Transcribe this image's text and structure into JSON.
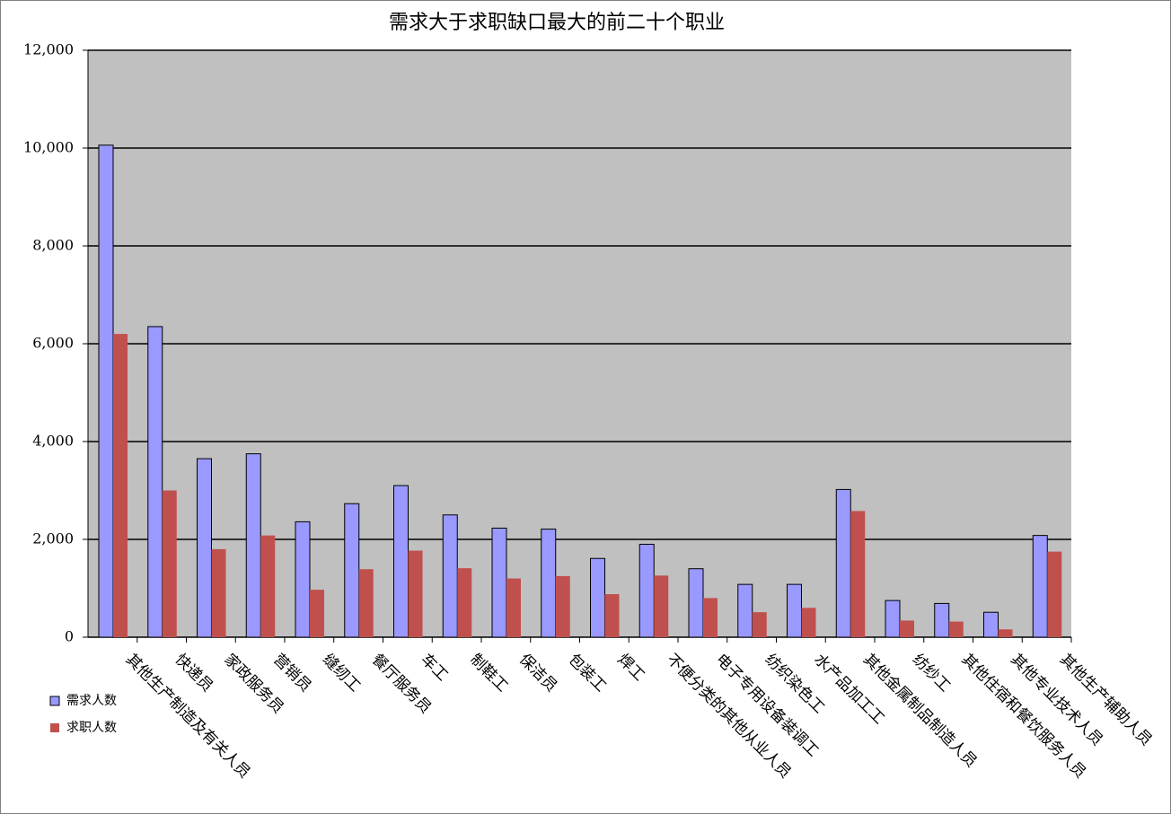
{
  "chart_data": {
    "type": "bar",
    "title": "需求大于求职缺口最大的前二十个职业",
    "categories": [
      "其他生产制造及有关人员",
      "快递员",
      "家政服务员",
      "营销员",
      "缝纫工",
      "餐厅服务员",
      "车工",
      "制鞋工",
      "保洁员",
      "包装工",
      "焊工",
      "不便分类的其他从业人员",
      "电子专用设备装调工",
      "纺织染色工",
      "水产品加工工",
      "其他金属制品制造人员",
      "纺纱工",
      "其他住宿和餐饮服务人员",
      "其他专业技术人员",
      "其他生产辅助人员"
    ],
    "series": [
      {
        "name": "需求人数",
        "color": "#9999ff",
        "values": [
          10060,
          6350,
          3650,
          3750,
          2360,
          2730,
          3100,
          2500,
          2230,
          2210,
          1610,
          1900,
          1400,
          1080,
          1080,
          3020,
          750,
          690,
          510,
          2080
        ]
      },
      {
        "name": "求职人数",
        "color": "#c0504d",
        "values": [
          6200,
          3000,
          1800,
          2080,
          970,
          1390,
          1770,
          1410,
          1200,
          1250,
          880,
          1260,
          800,
          510,
          600,
          2580,
          340,
          320,
          160,
          1750
        ]
      }
    ],
    "ylim": [
      0,
      12000
    ],
    "yticks": [
      0,
      {
        "value": 2000,
        "label": "2,000"
      },
      {
        "value": 4000,
        "label": "4,000"
      },
      {
        "value": 6000,
        "label": "6,000"
      },
      {
        "value": 8000,
        "label": "8,000"
      },
      {
        "value": 10000,
        "label": "10,000"
      },
      {
        "value": 12000,
        "label": "12,000"
      }
    ],
    "grid": true,
    "plot_background": "#c0c0c0",
    "legend": "bottom-left"
  }
}
